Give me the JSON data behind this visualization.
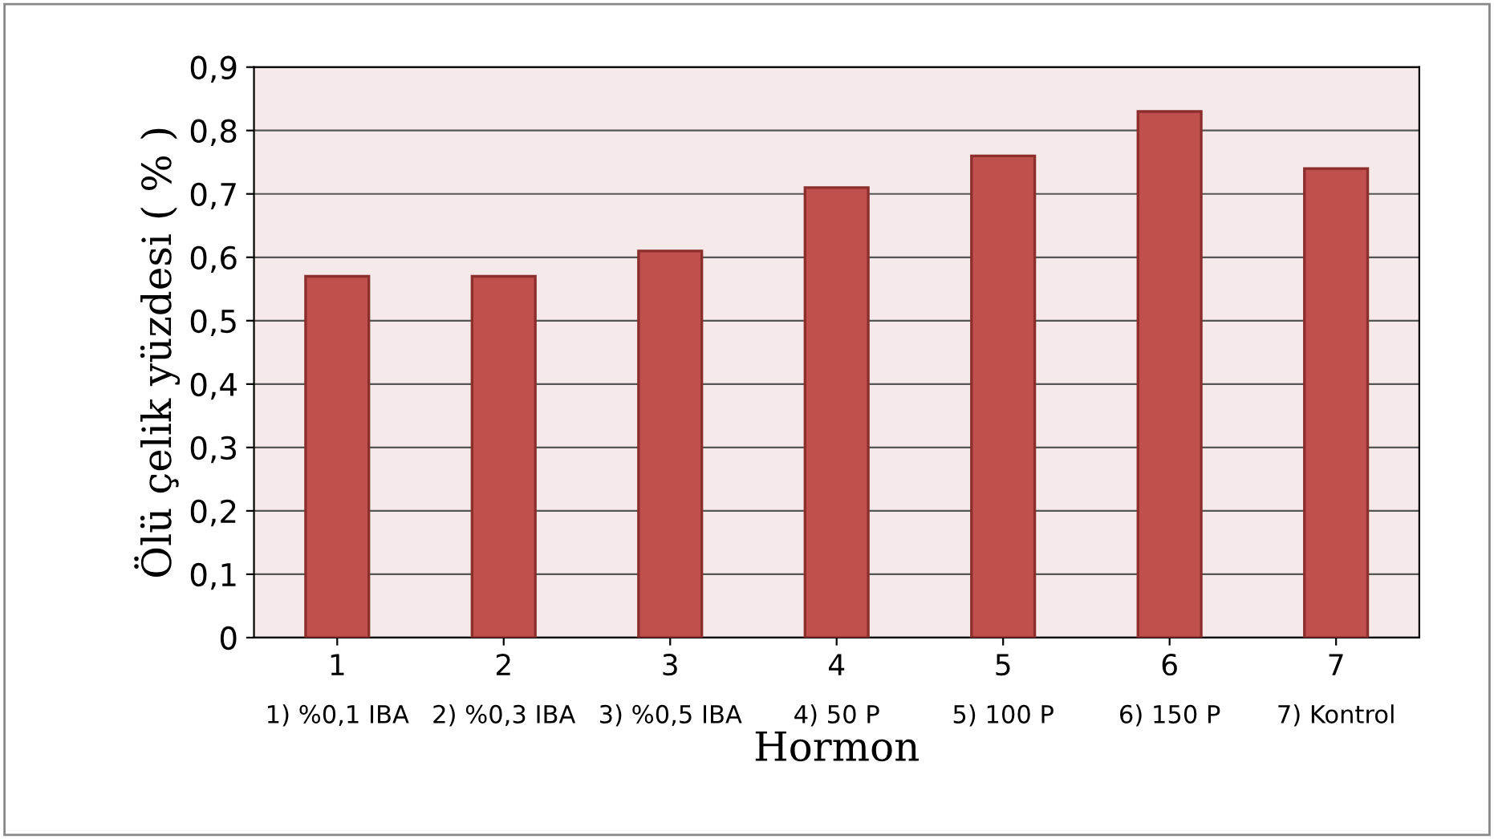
{
  "chart_data": {
    "type": "bar",
    "xlabel": "Hormon",
    "ylabel": "Ölü çelik yüzdesi ( % )",
    "categories": [
      "1",
      "2",
      "3",
      "4",
      "5",
      "6",
      "7"
    ],
    "values": [
      0.57,
      0.57,
      0.61,
      0.71,
      0.76,
      0.83,
      0.74
    ],
    "color": "#c0504d",
    "ylim": [
      0,
      0.9
    ],
    "yticks": [
      0,
      {
        "value": 0.1,
        "label": "0,1"
      },
      {
        "value": 0.2,
        "label": "0,2"
      },
      {
        "value": 0.3,
        "label": "0,3"
      },
      {
        "value": 0.4,
        "label": "0,4"
      },
      {
        "value": 0.5,
        "label": "0,5"
      },
      {
        "value": 0.6,
        "label": "0,6"
      },
      {
        "value": 0.7,
        "label": "0,7"
      },
      {
        "value": 0.8,
        "label": "0,8"
      },
      {
        "value": 0.9,
        "label": "0,9"
      }
    ],
    "grid": "y",
    "annotations": [
      "1) %0,1 IBA",
      "2) %0,3 IBA",
      "3) %0,5 IBA",
      "4) 50 P",
      "5) 100 P",
      "6) 150 P",
      "7) Kontrol"
    ]
  }
}
